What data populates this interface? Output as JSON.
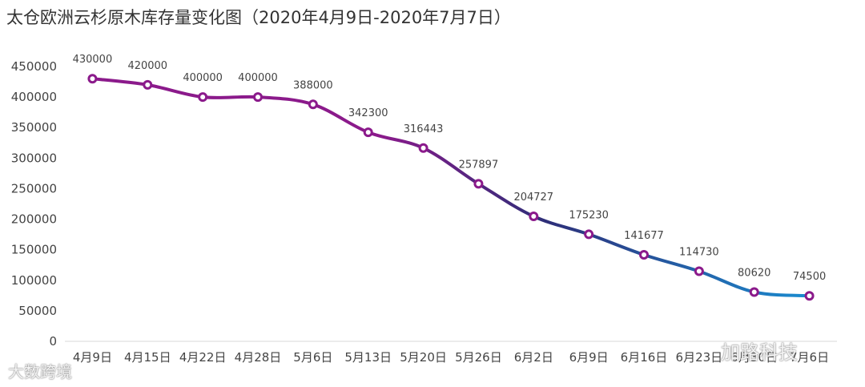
{
  "chart_data": {
    "type": "line",
    "title": "太仓欧洲云杉原木库存量变化图（2020年4月9日-2020年7月7日）",
    "categories": [
      "4月9日",
      "4月15日",
      "4月22日",
      "4月28日",
      "5月6日",
      "5月13日",
      "5月20日",
      "5月26日",
      "6月2日",
      "6月9日",
      "6月16日",
      "6月23日",
      "6月30日",
      "7月6日"
    ],
    "values": [
      430000,
      420000,
      400000,
      400000,
      388000,
      342300,
      316443,
      257897,
      204727,
      175230,
      141677,
      114730,
      80620,
      74500
    ],
    "y_ticks": [
      "0",
      "50000",
      "100000",
      "150000",
      "200000",
      "250000",
      "300000",
      "350000",
      "400000",
      "450000"
    ],
    "ylim": [
      0,
      450000
    ],
    "grid": false,
    "data_labels": true,
    "colors": {
      "line_start": "#8b1a8b",
      "line_mid": "#2e2e78",
      "line_end": "#1a8cd0",
      "marker": "#8b1a8b"
    }
  },
  "watermarks": {
    "left": "大数跨境",
    "right": "加路科技"
  }
}
